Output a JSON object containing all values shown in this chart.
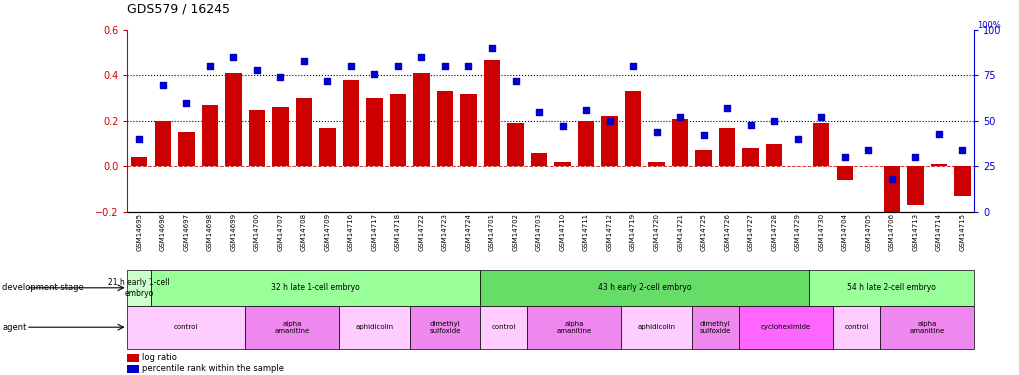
{
  "title": "GDS579 / 16245",
  "samples": [
    "GSM14695",
    "GSM14696",
    "GSM14697",
    "GSM14698",
    "GSM14699",
    "GSM14700",
    "GSM14707",
    "GSM14708",
    "GSM14709",
    "GSM14716",
    "GSM14717",
    "GSM14718",
    "GSM14722",
    "GSM14723",
    "GSM14724",
    "GSM14701",
    "GSM14702",
    "GSM14703",
    "GSM14710",
    "GSM14711",
    "GSM14712",
    "GSM14719",
    "GSM14720",
    "GSM14721",
    "GSM14725",
    "GSM14726",
    "GSM14727",
    "GSM14728",
    "GSM14729",
    "GSM14730",
    "GSM14704",
    "GSM14705",
    "GSM14706",
    "GSM14713",
    "GSM14714",
    "GSM14715"
  ],
  "log_ratio": [
    0.04,
    0.2,
    0.15,
    0.27,
    0.41,
    0.25,
    0.26,
    0.3,
    0.17,
    0.38,
    0.3,
    0.32,
    0.41,
    0.33,
    0.32,
    0.47,
    0.19,
    0.06,
    0.02,
    0.2,
    0.22,
    0.33,
    0.02,
    0.21,
    0.07,
    0.17,
    0.08,
    0.1,
    0.0,
    0.19,
    -0.06,
    0.0,
    -0.25,
    -0.17,
    0.01,
    -0.13
  ],
  "pct_rank": [
    40,
    70,
    60,
    80,
    85,
    78,
    74,
    83,
    72,
    80,
    76,
    80,
    85,
    80,
    80,
    90,
    72,
    55,
    47,
    56,
    50,
    80,
    44,
    52,
    42,
    57,
    48,
    50,
    40,
    52,
    30,
    34,
    18,
    30,
    43,
    34
  ],
  "bar_color": "#cc0000",
  "dot_color": "#0000cc",
  "ylim_left": [
    -0.2,
    0.6
  ],
  "ylim_right": [
    0,
    100
  ],
  "yticks_left": [
    -0.2,
    0.0,
    0.2,
    0.4,
    0.6
  ],
  "yticks_right": [
    0,
    25,
    50,
    75,
    100
  ],
  "hlines": [
    0.2,
    0.4
  ],
  "hline_color": "black",
  "zero_line_color": "#cc0000",
  "dev_stage_groups": [
    {
      "label": "21 h early 1-cell\nembryο",
      "start": 0,
      "end": 1,
      "color": "#ccffcc"
    },
    {
      "label": "32 h late 1-cell embryo",
      "start": 1,
      "end": 15,
      "color": "#99ff99"
    },
    {
      "label": "43 h early 2-cell embryo",
      "start": 15,
      "end": 29,
      "color": "#66dd66"
    },
    {
      "label": "54 h late 2-cell embryo",
      "start": 29,
      "end": 36,
      "color": "#99ff99"
    }
  ],
  "agent_groups": [
    {
      "label": "control",
      "start": 0,
      "end": 5,
      "color": "#ffccff"
    },
    {
      "label": "alpha\namanitine",
      "start": 5,
      "end": 9,
      "color": "#ee88ee"
    },
    {
      "label": "aphidicolin",
      "start": 9,
      "end": 12,
      "color": "#ffccff"
    },
    {
      "label": "dimethyl\nsulfoxide",
      "start": 12,
      "end": 15,
      "color": "#ee88ee"
    },
    {
      "label": "control",
      "start": 15,
      "end": 17,
      "color": "#ffccff"
    },
    {
      "label": "alpha\namanitine",
      "start": 17,
      "end": 21,
      "color": "#ee88ee"
    },
    {
      "label": "aphidicolin",
      "start": 21,
      "end": 24,
      "color": "#ffccff"
    },
    {
      "label": "dimethyl\nsulfoxide",
      "start": 24,
      "end": 26,
      "color": "#ee88ee"
    },
    {
      "label": "cycloheximide",
      "start": 26,
      "end": 30,
      "color": "#ff66ff"
    },
    {
      "label": "control",
      "start": 30,
      "end": 32,
      "color": "#ffccff"
    },
    {
      "label": "alpha\namanitine",
      "start": 32,
      "end": 36,
      "color": "#ee88ee"
    }
  ],
  "legend_bar_label": "log ratio",
  "legend_dot_label": "percentile rank within the sample",
  "dev_stage_label": "development stage",
  "agent_label": "agent"
}
